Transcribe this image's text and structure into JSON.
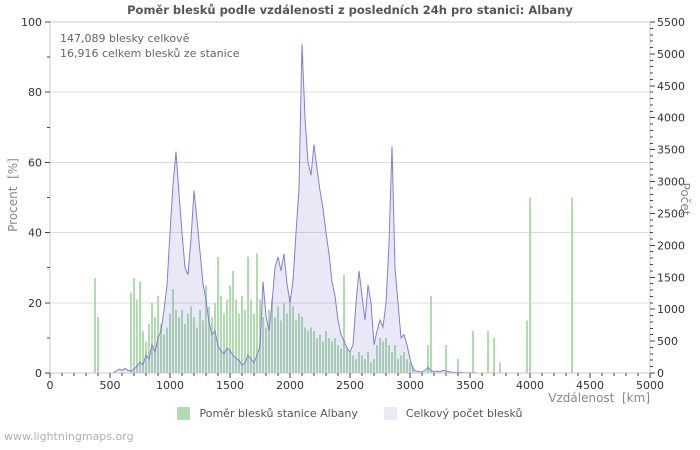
{
  "footer": "www.lightningmaps.org",
  "chart_data": {
    "type": "combo",
    "title": "Poměr blesků podle vzdálenosti z posledních 24h pro stanici: Albany",
    "annotations": [
      "147,089 blesky celkově",
      "16,916 celkem blesků ze stanice"
    ],
    "x_axis_label": "Vzdálenost  [km]",
    "x_start": 0,
    "x_step": 25,
    "x_max": 5000,
    "x_tick_step": 500,
    "x_minor_step": 100,
    "left_axis": {
      "label": "Procent  [%]",
      "max": 100,
      "tick_step": 20,
      "minor_step": 10
    },
    "right_axis": {
      "label": "Počet",
      "max": 5500,
      "tick_step": 500,
      "minor_step": 100
    },
    "grid": "horizontal-only",
    "legend_position": "bottom-center",
    "series": [
      {
        "name": "Poměr blesků stanice Albany",
        "type": "bar",
        "axis": "left",
        "color": "#b0dcb0",
        "legend_color": "#b0dcb0",
        "values": [
          0,
          0,
          0,
          0,
          0,
          0,
          0,
          0,
          0,
          0,
          0,
          0,
          0,
          0,
          0,
          27,
          16,
          0,
          0,
          0,
          0,
          0,
          0,
          0,
          0,
          0,
          0,
          23,
          27,
          21,
          26,
          12,
          9,
          14,
          20,
          16,
          22,
          14,
          11,
          13,
          17,
          24,
          18,
          16,
          18,
          14,
          17,
          19,
          16,
          13,
          18,
          15,
          25,
          19,
          16,
          20,
          33,
          22,
          17,
          21,
          25,
          29,
          21,
          17,
          22,
          18,
          33,
          21,
          17,
          34,
          21,
          16,
          13,
          18,
          21,
          16,
          19,
          15,
          20,
          17,
          22,
          19,
          15,
          17,
          16,
          13,
          12,
          13,
          12,
          10,
          11,
          9,
          12,
          10,
          9,
          10,
          8,
          7,
          28,
          7,
          6,
          5,
          4,
          6,
          5,
          4,
          6,
          3,
          4,
          8,
          10,
          9,
          10,
          8,
          6,
          8,
          4,
          5,
          6,
          4,
          3,
          2,
          0,
          0,
          0,
          0,
          8,
          22,
          0,
          0,
          0,
          0,
          8,
          0,
          0,
          0,
          4,
          0,
          0,
          0,
          0,
          12,
          0,
          0,
          0,
          0,
          12,
          0,
          10,
          0,
          3,
          0,
          0,
          0,
          0,
          0,
          0,
          0,
          0,
          15,
          50,
          0,
          0,
          0,
          0,
          0,
          0,
          0,
          0,
          0,
          0,
          0,
          0,
          0,
          50,
          0,
          0,
          0,
          0,
          0,
          0,
          0,
          0,
          0,
          0,
          0,
          0,
          0,
          0,
          0,
          0,
          0,
          0,
          0,
          0,
          0,
          0,
          0,
          0,
          0,
          0
        ]
      },
      {
        "name": "Celkový počet blesků",
        "type": "area-line",
        "axis": "right",
        "line_color": "#8080d0",
        "fill_color": "rgba(128,128,208,0.18)",
        "legend_color": "#e9e9f9",
        "values": [
          0,
          0,
          0,
          0,
          0,
          0,
          0,
          0,
          0,
          0,
          0,
          0,
          0,
          0,
          0,
          0,
          0,
          0,
          0,
          0,
          0,
          0,
          30,
          60,
          40,
          70,
          40,
          30,
          60,
          110,
          170,
          130,
          280,
          220,
          440,
          330,
          550,
          660,
          990,
          1380,
          2200,
          2950,
          3470,
          2800,
          2200,
          1650,
          1540,
          2100,
          2860,
          2400,
          1900,
          1400,
          1150,
          800,
          600,
          660,
          420,
          350,
          300,
          390,
          350,
          280,
          230,
          200,
          130,
          150,
          280,
          220,
          160,
          280,
          420,
          1430,
          900,
          660,
          1100,
          1650,
          1820,
          1600,
          1870,
          1400,
          1100,
          1450,
          2200,
          2900,
          5150,
          4000,
          3300,
          3100,
          3580,
          3200,
          2860,
          2580,
          2200,
          1870,
          1430,
          1210,
          830,
          600,
          500,
          390,
          330,
          440,
          1100,
          1600,
          1210,
          830,
          1380,
          1100,
          440,
          660,
          830,
          720,
          1100,
          2030,
          3550,
          1650,
          1100,
          550,
          600,
          440,
          220,
          60,
          30,
          20,
          20,
          40,
          90,
          40,
          20,
          30,
          20,
          40,
          30,
          20,
          10,
          10,
          10,
          10,
          5,
          5,
          5,
          5,
          5,
          0,
          0,
          0,
          0,
          0,
          0,
          0,
          0,
          0,
          0,
          0,
          0,
          0,
          0,
          0,
          0,
          0,
          0,
          0,
          0,
          0,
          0,
          0,
          0,
          0,
          0,
          0,
          0,
          0,
          0,
          0,
          0,
          0,
          0,
          0,
          0,
          0,
          0,
          0,
          0,
          0,
          0,
          0,
          0,
          0,
          0,
          0,
          0,
          0,
          0,
          0,
          0,
          0,
          0,
          0,
          0,
          0,
          0
        ]
      }
    ]
  }
}
